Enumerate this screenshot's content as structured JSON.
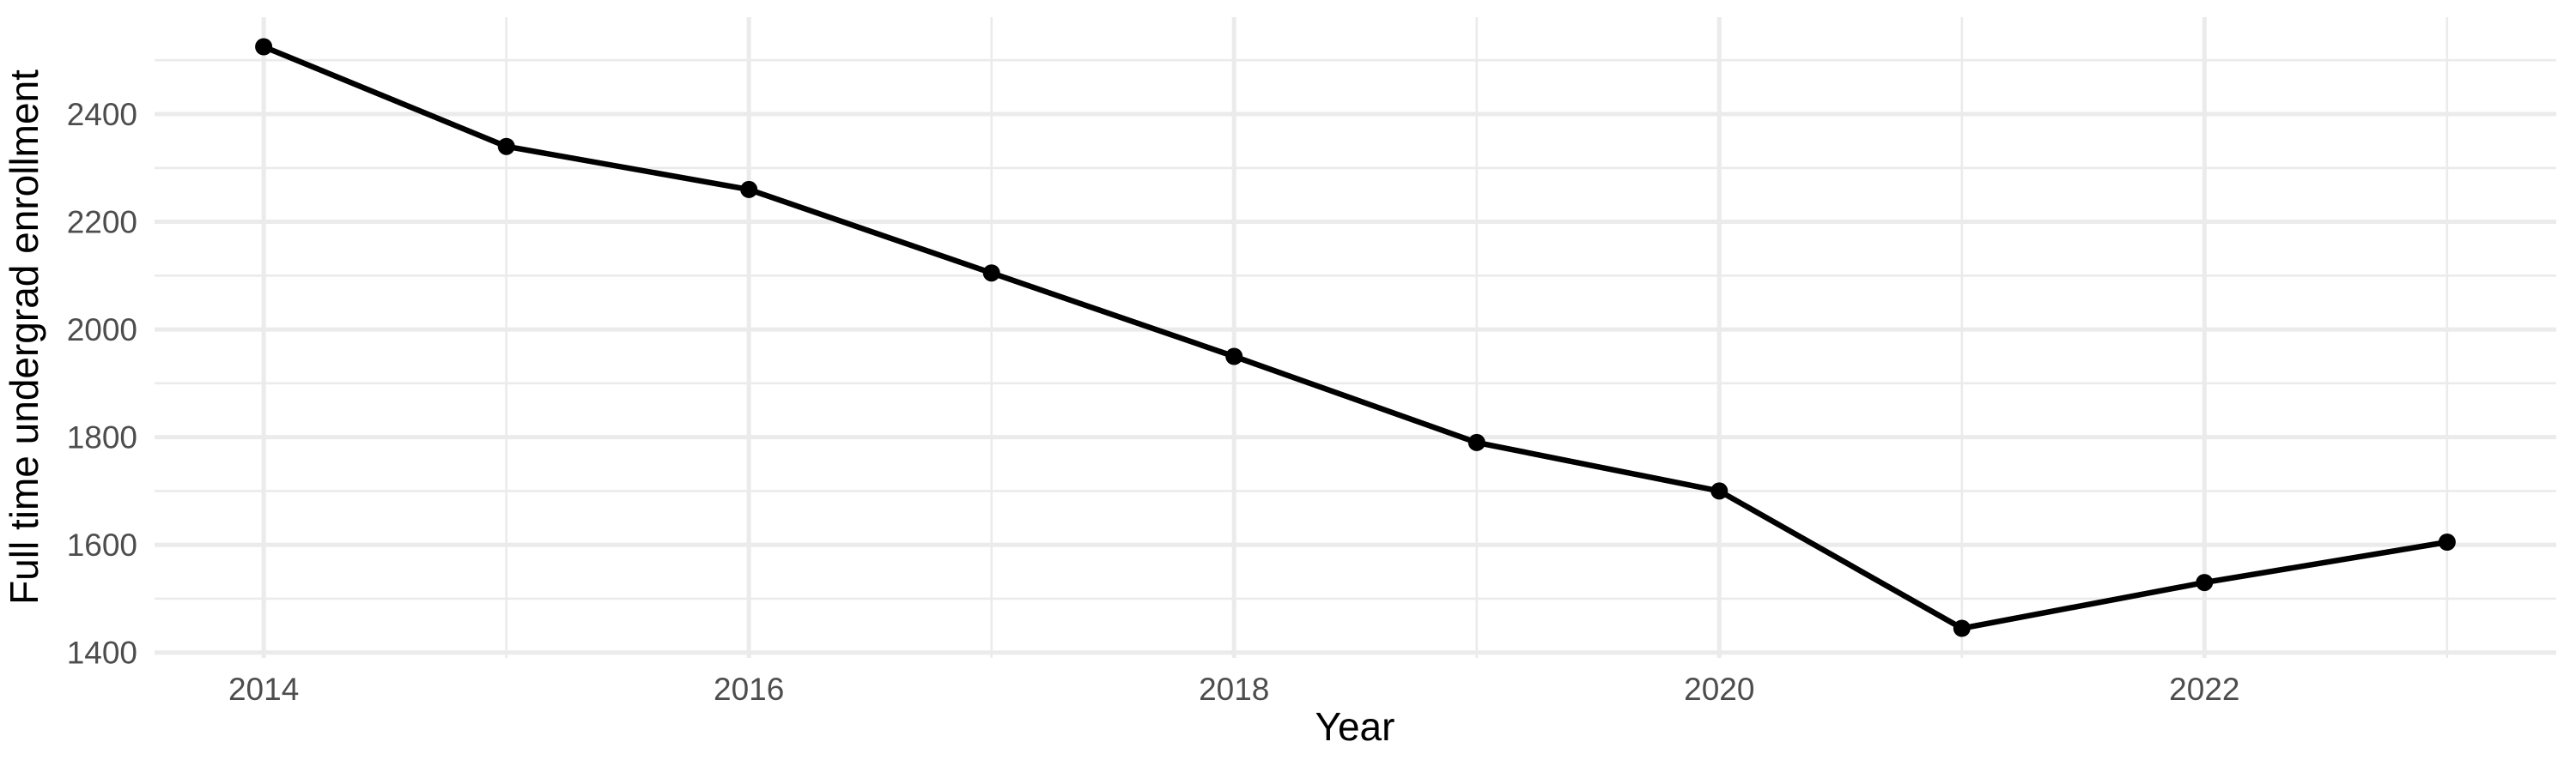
{
  "chart_data": {
    "type": "line",
    "title": "",
    "xlabel": "Year",
    "ylabel": "Full time undergrad enrollment",
    "x": [
      2014,
      2015,
      2016,
      2017,
      2018,
      2019,
      2020,
      2021,
      2022,
      2023
    ],
    "series": [
      {
        "name": "Full time undergrad enrollment",
        "values": [
          2525,
          2340,
          2260,
          2105,
          1950,
          1790,
          1700,
          1445,
          1530,
          1605
        ]
      }
    ],
    "xlim": [
      2013.55,
      2023.45
    ],
    "ylim": [
      1390,
      2580
    ],
    "x_major_ticks": [
      {
        "value": 2014,
        "label": "2014"
      },
      {
        "value": 2016,
        "label": "2016"
      },
      {
        "value": 2018,
        "label": "2018"
      },
      {
        "value": 2020,
        "label": "2020"
      },
      {
        "value": 2022,
        "label": "2022"
      }
    ],
    "x_minor_ticks": [
      2015,
      2017,
      2019,
      2021,
      2023
    ],
    "y_major_ticks": [
      {
        "value": 1400,
        "label": "1400"
      },
      {
        "value": 1600,
        "label": "1600"
      },
      {
        "value": 1800,
        "label": "1800"
      },
      {
        "value": 2000,
        "label": "2000"
      },
      {
        "value": 2200,
        "label": "2200"
      },
      {
        "value": 2400,
        "label": "2400"
      }
    ],
    "y_minor_ticks": [
      1500,
      1700,
      1900,
      2100,
      2300,
      2500
    ],
    "grid": "on",
    "legend": "none",
    "colors": {
      "line": "#000000",
      "point": "#000000",
      "grid": "#EBEBEB",
      "tick_label": "#4D4D4D",
      "axis_title": "#000000",
      "background": "#FFFFFF"
    }
  }
}
